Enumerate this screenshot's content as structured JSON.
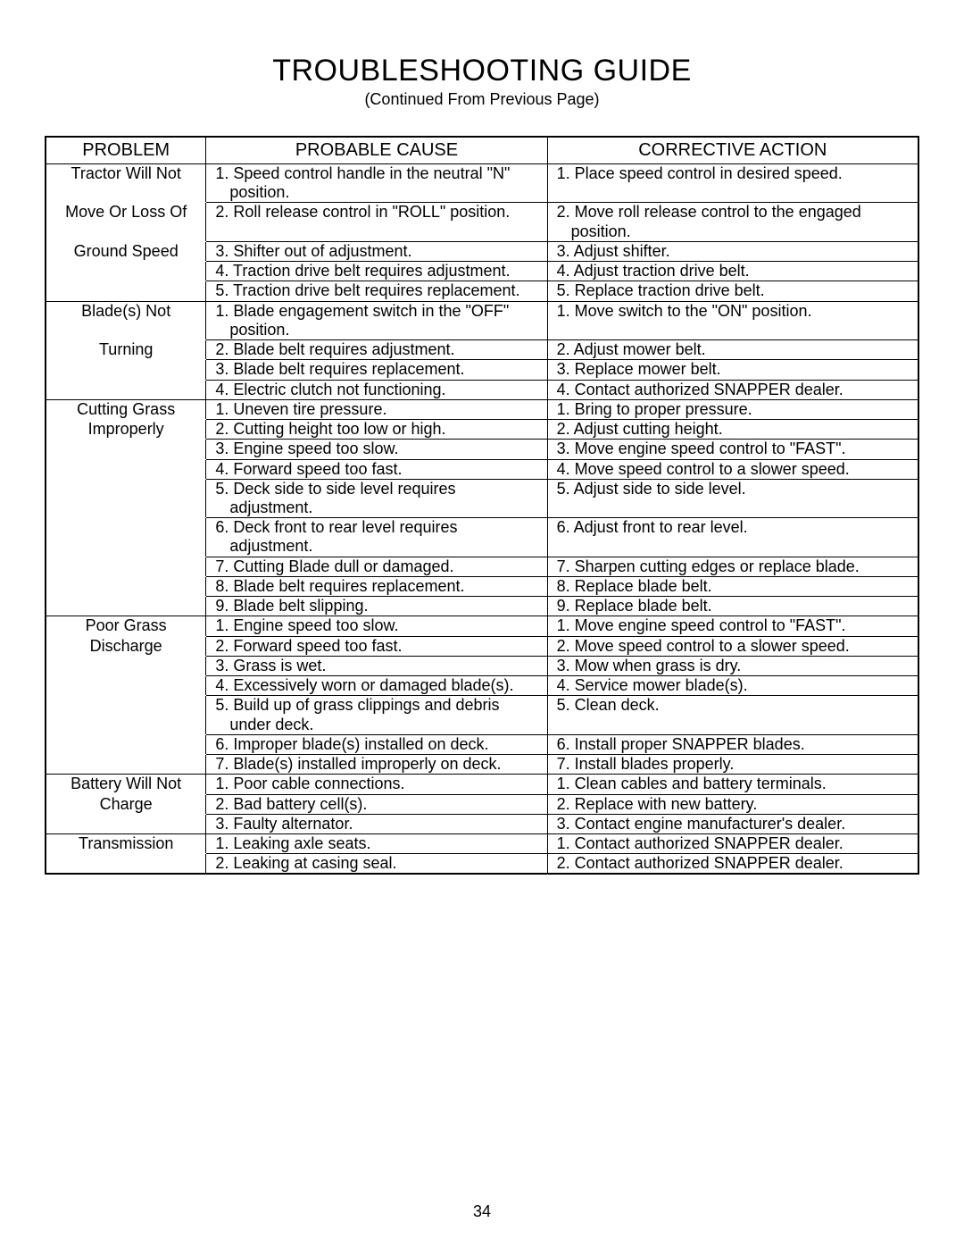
{
  "title": "TROUBLESHOOTING GUIDE",
  "subtitle": "(Continued From Previous Page)",
  "page_number": "34",
  "table": {
    "headers": {
      "problem": "PROBLEM",
      "cause": "PROBABLE CAUSE",
      "action": "CORRECTIVE ACTION"
    },
    "sections": [
      {
        "problem_lines": [
          "Tractor Will Not",
          "Move Or Loss Of",
          "Ground Speed"
        ],
        "rows": [
          {
            "cause": "1. Speed control handle in the neutral \"N\" position.",
            "action": "1. Place speed control in desired speed."
          },
          {
            "cause": "2. Roll release control in \"ROLL\" position.",
            "action": "2. Move roll release control to the engaged position."
          },
          {
            "cause": "3. Shifter out of adjustment.",
            "action": "3. Adjust shifter."
          },
          {
            "cause": "4. Traction drive belt requires adjustment.",
            "action": "4. Adjust traction drive belt."
          },
          {
            "cause": "5. Traction drive belt requires replacement.",
            "action": "5. Replace traction drive belt."
          }
        ]
      },
      {
        "problem_lines": [
          "Blade(s) Not",
          "Turning"
        ],
        "rows": [
          {
            "cause": "1. Blade engagement switch in the \"OFF\" position.",
            "action": "1. Move switch to the \"ON\" position."
          },
          {
            "cause": "2. Blade belt requires adjustment.",
            "action": "2. Adjust mower belt."
          },
          {
            "cause": "3. Blade belt requires replacement.",
            "action": "3. Replace mower belt."
          },
          {
            "cause": "4. Electric clutch not functioning.",
            "action": "4. Contact authorized SNAPPER dealer."
          }
        ]
      },
      {
        "problem_lines": [
          "Cutting Grass",
          "Improperly"
        ],
        "rows": [
          {
            "cause": "1. Uneven tire pressure.",
            "action": "1. Bring to proper pressure."
          },
          {
            "cause": "2. Cutting height too low or high.",
            "action": "2. Adjust cutting height."
          },
          {
            "cause": "3. Engine speed too slow.",
            "action": "3. Move engine speed control to \"FAST\"."
          },
          {
            "cause": "4. Forward speed too fast.",
            "action": "4. Move speed control to a slower speed."
          },
          {
            "cause": "5. Deck side to side level requires adjustment.",
            "action": "5. Adjust side to side level."
          },
          {
            "cause": "6. Deck front to rear level requires adjustment.",
            "action": "6. Adjust front to rear level."
          },
          {
            "cause": "7. Cutting Blade dull or damaged.",
            "action": "7. Sharpen cutting edges or replace blade."
          },
          {
            "cause": "8. Blade belt requires replacement.",
            "action": "8. Replace blade belt."
          },
          {
            "cause": "9. Blade belt slipping.",
            "action": "9. Replace blade belt."
          }
        ]
      },
      {
        "problem_lines": [
          "Poor Grass",
          "Discharge"
        ],
        "rows": [
          {
            "cause": "1. Engine speed too slow.",
            "action": "1. Move engine speed control to \"FAST\"."
          },
          {
            "cause": "2. Forward speed too fast.",
            "action": "2. Move speed control to a slower speed."
          },
          {
            "cause": "3. Grass is wet.",
            "action": "3. Mow when grass is dry."
          },
          {
            "cause": "4. Excessively worn or damaged blade(s).",
            "action": "4. Service mower blade(s)."
          },
          {
            "cause": "5. Build up of grass clippings and debris under deck.",
            "action": "5. Clean deck."
          },
          {
            "cause": "6. Improper blade(s) installed on deck.",
            "action": "6. Install proper SNAPPER blades."
          },
          {
            "cause": "7. Blade(s) installed improperly on deck.",
            "action": "7. Install blades properly."
          }
        ]
      },
      {
        "problem_lines": [
          "Battery Will Not",
          "Charge"
        ],
        "rows": [
          {
            "cause": "1. Poor cable connections.",
            "action": "1. Clean cables and battery terminals."
          },
          {
            "cause": "2. Bad battery cell(s).",
            "action": "2. Replace with new battery."
          },
          {
            "cause": "3. Faulty alternator.",
            "action": "3. Contact engine manufacturer's dealer."
          }
        ]
      },
      {
        "problem_lines": [
          "Transmission"
        ],
        "rows": [
          {
            "cause": "1. Leaking axle seats.",
            "action": "1. Contact authorized SNAPPER dealer."
          },
          {
            "cause": "2. Leaking at casing seal.",
            "action": "2. Contact authorized SNAPPER dealer."
          }
        ]
      }
    ]
  }
}
